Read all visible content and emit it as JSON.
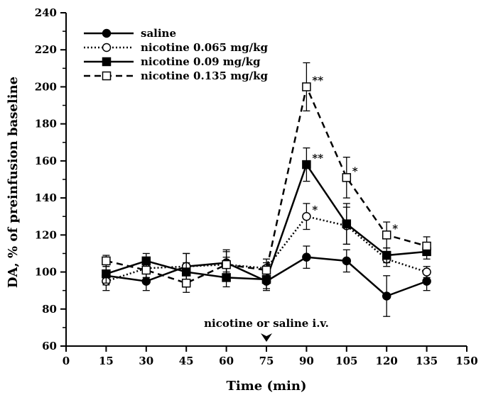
{
  "chart_data": {
    "type": "line",
    "xlabel": "Time (min)",
    "ylabel": "DA, % of preinfusion baseline",
    "xlim": [
      0,
      150
    ],
    "ylim": [
      60,
      240
    ],
    "xticks": [
      0,
      15,
      30,
      45,
      60,
      75,
      90,
      105,
      120,
      135,
      150
    ],
    "yticks": [
      60,
      80,
      100,
      120,
      140,
      160,
      180,
      200,
      220,
      240
    ],
    "grid": false,
    "legend_position": "top-left",
    "annotation": {
      "text": "nicotine or saline i.v.",
      "x": 75
    },
    "series": [
      {
        "name": "saline",
        "line_style": "solid",
        "marker": "filled-circle",
        "x": [
          15,
          30,
          45,
          60,
          75,
          90,
          105,
          120,
          135
        ],
        "y": [
          98,
          95,
          103,
          105,
          95,
          108,
          106,
          87,
          95
        ],
        "err": [
          5,
          5,
          7,
          7,
          5,
          6,
          6,
          11,
          5
        ],
        "sig": [
          "",
          "",
          "",
          "",
          "",
          "",
          "",
          "",
          ""
        ]
      },
      {
        "name": "nicotine 0.065 mg/kg",
        "line_style": "dotted",
        "marker": "open-circle",
        "x": [
          15,
          30,
          45,
          60,
          75,
          90,
          105,
          120,
          135
        ],
        "y": [
          95,
          102,
          103,
          104,
          102,
          130,
          125,
          107,
          100
        ],
        "err": [
          5,
          5,
          7,
          7,
          5,
          7,
          10,
          4,
          3
        ],
        "sig": [
          "",
          "",
          "",
          "",
          "",
          "*",
          "",
          "",
          ""
        ]
      },
      {
        "name": "nicotine 0.09 mg/kg",
        "line_style": "solid",
        "marker": "filled-square",
        "x": [
          15,
          30,
          45,
          60,
          75,
          90,
          105,
          120,
          135
        ],
        "y": [
          99,
          106,
          100,
          97,
          96,
          158,
          126,
          109,
          111
        ],
        "err": [
          5,
          4,
          5,
          5,
          5,
          9,
          11,
          4,
          4
        ],
        "sig": [
          "",
          "",
          "",
          "",
          "",
          "**",
          "",
          "",
          ""
        ]
      },
      {
        "name": "nicotine 0.135 mg/kg",
        "line_style": "dashed",
        "marker": "open-square",
        "x": [
          15,
          30,
          45,
          60,
          75,
          90,
          105,
          120,
          135
        ],
        "y": [
          106,
          101,
          94,
          104,
          101,
          200,
          151,
          120,
          114
        ],
        "err": [
          3,
          4,
          5,
          4,
          4,
          13,
          11,
          7,
          5
        ],
        "sig": [
          "",
          "",
          "",
          "",
          "",
          "**",
          "*",
          "*",
          ""
        ]
      }
    ]
  }
}
